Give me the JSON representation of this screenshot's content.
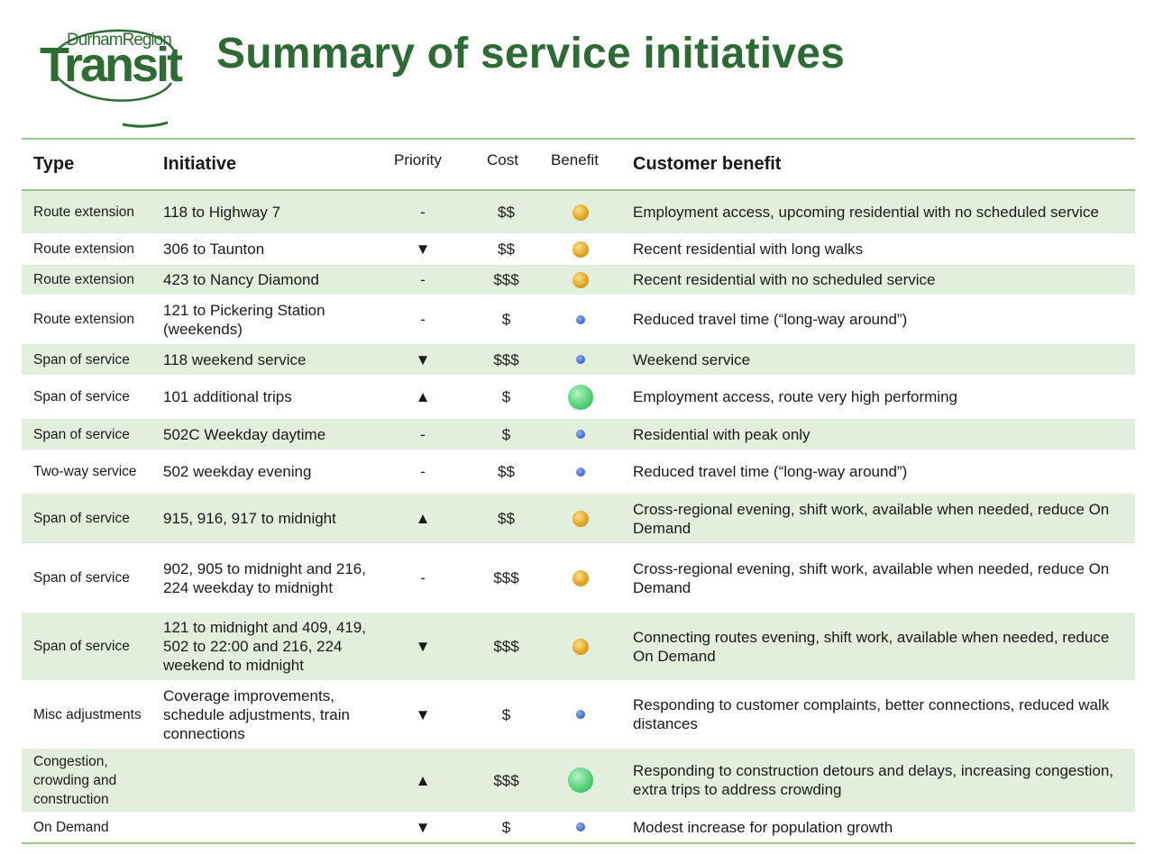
{
  "logo": {
    "line1": "DurhamRegion",
    "line2": "Transit"
  },
  "title": "Summary of service initiatives",
  "headers": {
    "type": "Type",
    "initiative": "Initiative",
    "priority": "Priority",
    "cost": "Cost",
    "benefit": "Benefit",
    "customer_benefit": "Customer benefit"
  },
  "rows": [
    {
      "type": "Route extension",
      "initiative": "118 to Highway 7",
      "priority": "-",
      "cost": "$$",
      "benefit": "medium",
      "customer": "Employment access, upcoming residential with no scheduled service"
    },
    {
      "type": "Route extension",
      "initiative": "306 to Taunton",
      "priority": "▼",
      "cost": "$$",
      "benefit": "medium",
      "customer": "Recent residential with long walks"
    },
    {
      "type": "Route extension",
      "initiative": "423 to Nancy Diamond",
      "priority": "-",
      "cost": "$$$",
      "benefit": "medium",
      "customer": "Recent residential with no scheduled service"
    },
    {
      "type": "Route extension",
      "initiative": "121 to Pickering Station (weekends)",
      "priority": "-",
      "cost": "$",
      "benefit": "low",
      "customer": "Reduced travel time (“long-way around”)"
    },
    {
      "type": "Span of service",
      "initiative": "118 weekend service",
      "priority": "▼",
      "cost": "$$$",
      "benefit": "low",
      "customer": "Weekend service"
    },
    {
      "type": "Span of service",
      "initiative": "101 additional trips",
      "priority": "▲",
      "cost": "$",
      "benefit": "high",
      "customer": "Employment access, route very high performing"
    },
    {
      "type": "Span of service",
      "initiative": "502C Weekday daytime",
      "priority": "-",
      "cost": "$",
      "benefit": "low",
      "customer": "Residential with peak only"
    },
    {
      "type": "Two-way service",
      "initiative": "502 weekday evening",
      "priority": "-",
      "cost": "$$",
      "benefit": "low",
      "customer": "Reduced travel time (“long-way around”)"
    },
    {
      "type": "Span of service",
      "initiative": "915, 916, 917 to midnight",
      "priority": "▲",
      "cost": "$$",
      "benefit": "medium",
      "customer": "Cross-regional evening, shift work, available when needed, reduce On Demand"
    },
    {
      "type": "Span of service",
      "initiative": "902, 905 to midnight and 216, 224 weekday to midnight",
      "priority": "-",
      "cost": "$$$",
      "benefit": "medium",
      "customer": "Cross-regional evening, shift work, available when needed, reduce On Demand"
    },
    {
      "type": "Span of service",
      "initiative": "121 to midnight and 409, 419, 502 to 22:00 and 216, 224 weekend to midnight",
      "priority": "▼",
      "cost": "$$$",
      "benefit": "medium",
      "customer": "Connecting routes evening, shift work, available when needed, reduce On Demand"
    },
    {
      "type": "Misc adjustments",
      "initiative": "Coverage improvements, schedule adjustments, train connections",
      "priority": "▼",
      "cost": "$",
      "benefit": "low",
      "customer": "Responding to customer complaints, better connections, reduced walk distances"
    },
    {
      "type": "Congestion, crowding and construction",
      "initiative": "",
      "priority": "▲",
      "cost": "$$$",
      "benefit": "high",
      "customer": "Responding to construction detours and delays, increasing congestion, extra trips to address crowding"
    },
    {
      "type": "On Demand",
      "initiative": "",
      "priority": "▼",
      "cost": "$",
      "benefit": "low",
      "customer": "Modest increase for population growth"
    }
  ]
}
